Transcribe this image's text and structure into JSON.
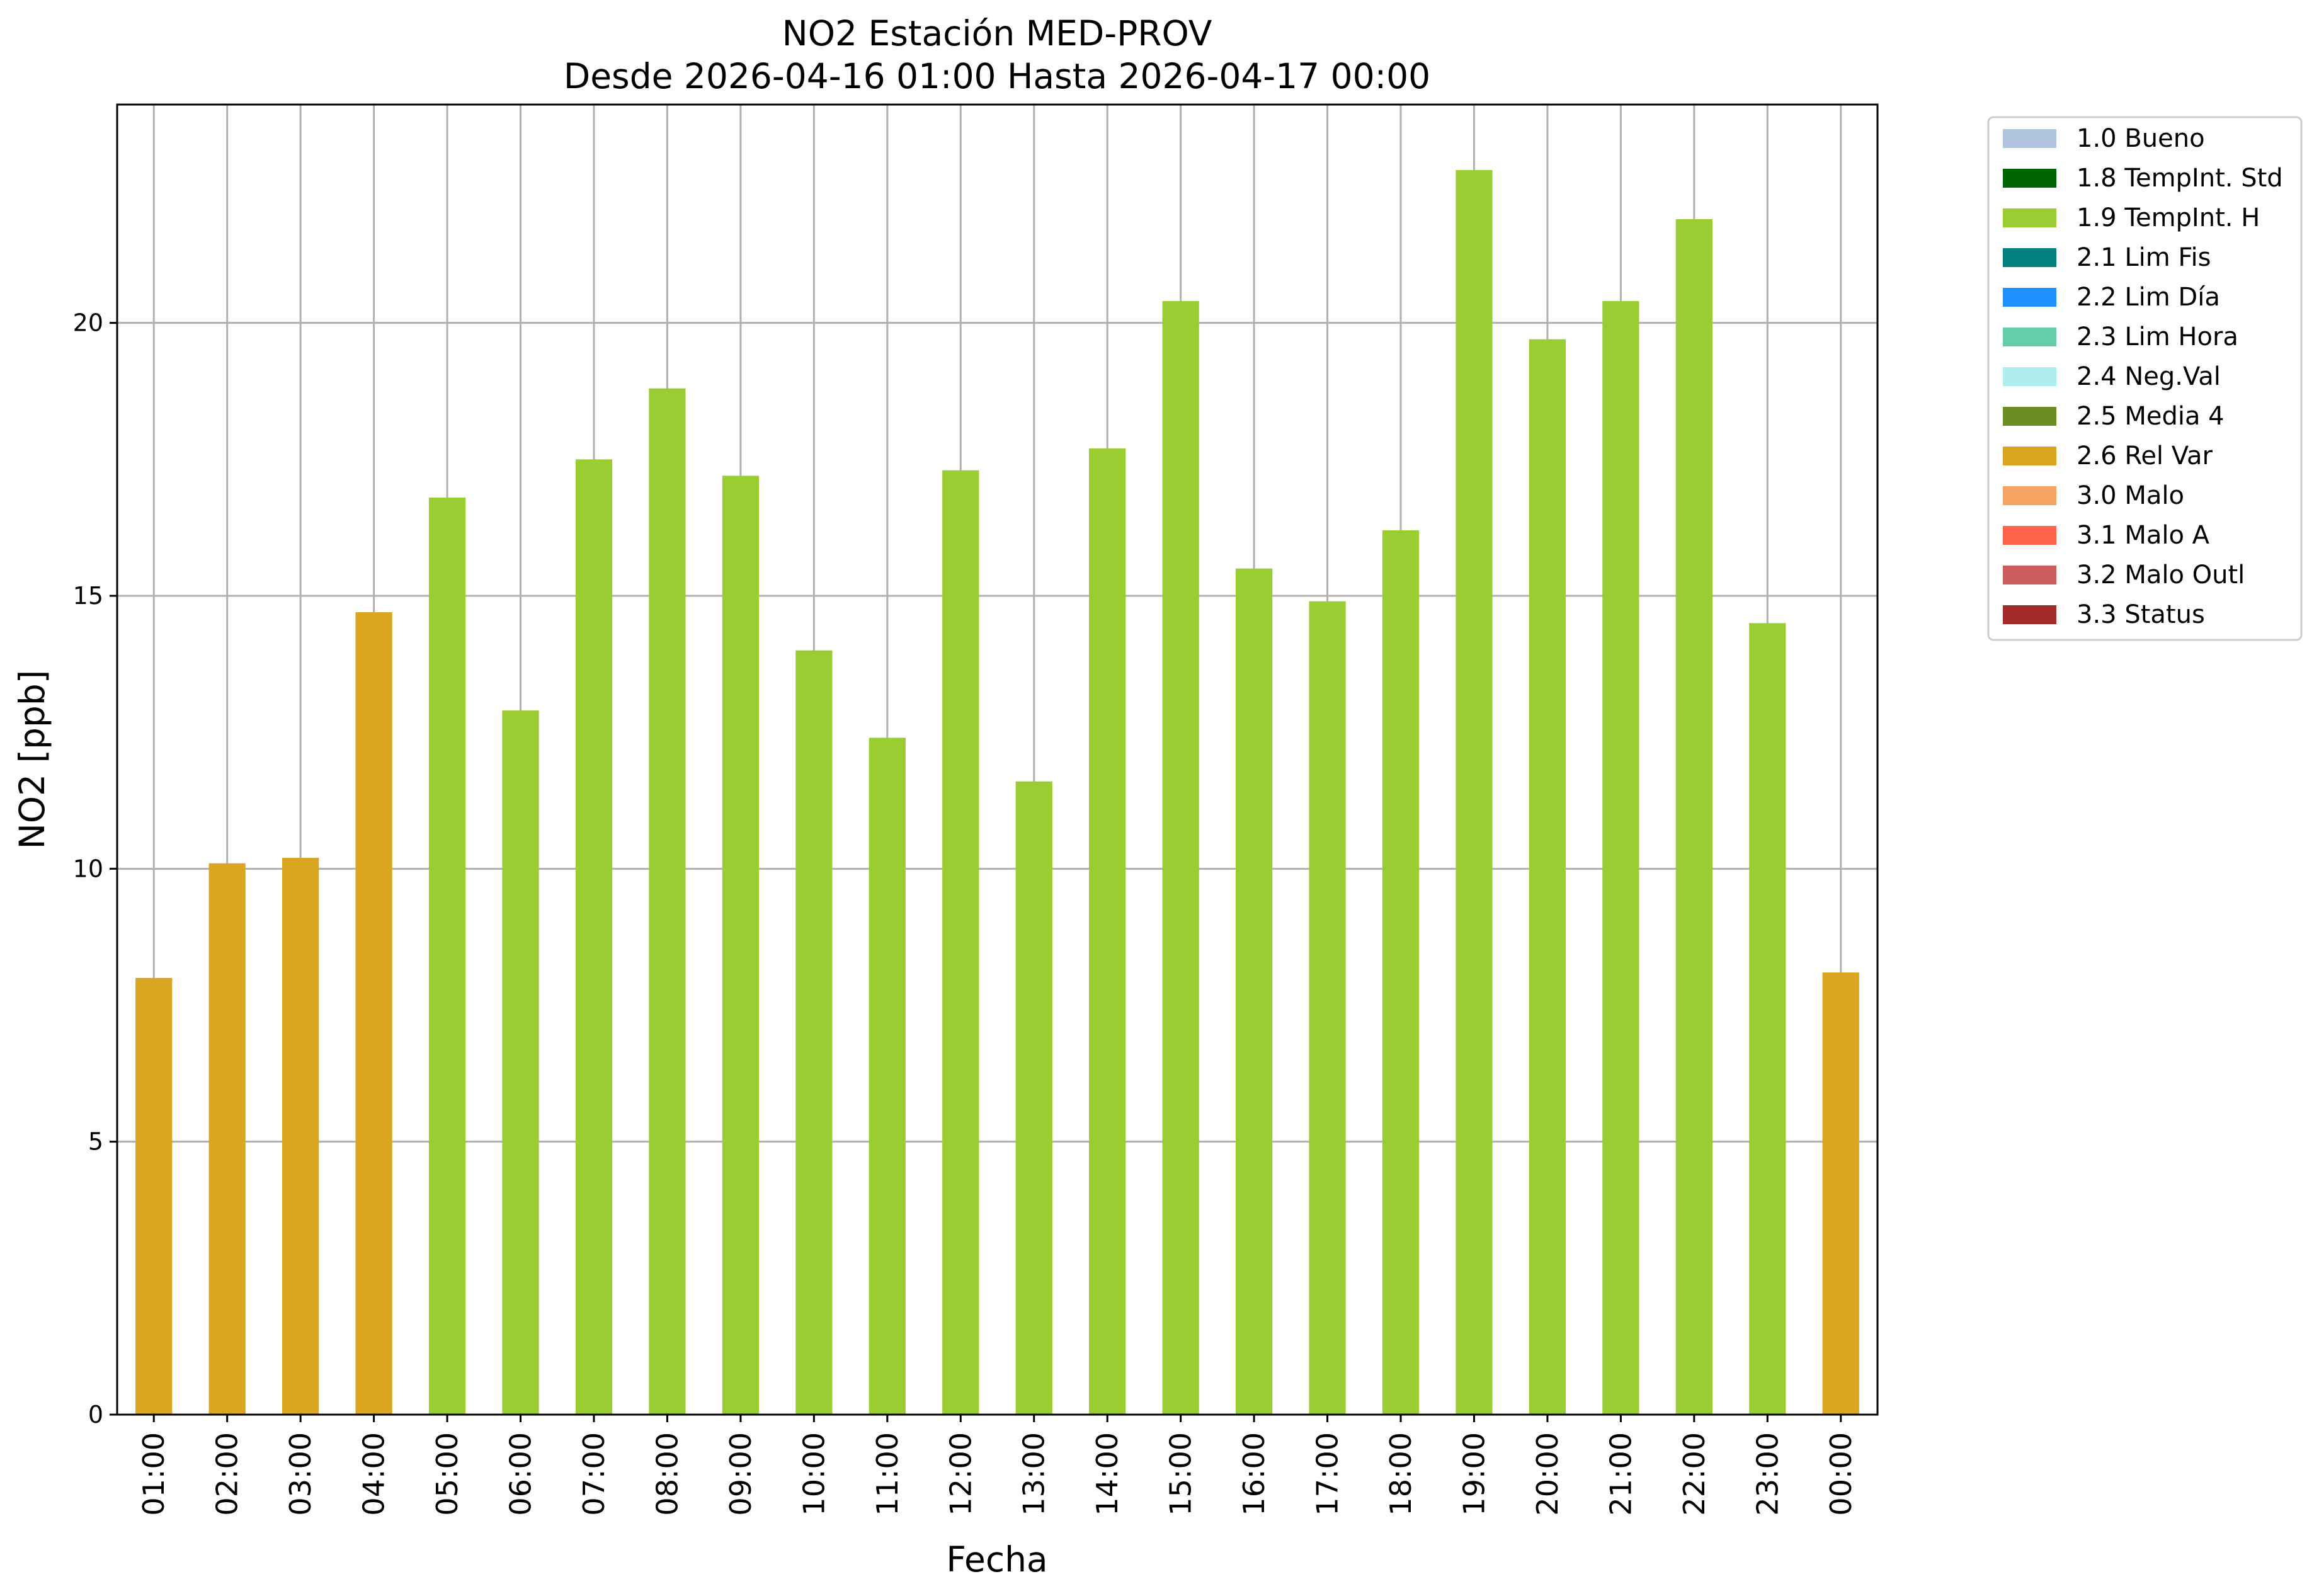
{
  "chart_data": {
    "type": "bar",
    "title": "NO2 Estación MED-PROV",
    "subtitle": "Desde 2026-04-16 01:00 Hasta 2026-04-17 00:00",
    "xlabel": "Fecha",
    "ylabel": "NO2 [ppb]",
    "ylim": [
      0,
      24
    ],
    "yticks": [
      0,
      5,
      10,
      15,
      20
    ],
    "grid": true,
    "legend_position": "outside right, top",
    "categories": [
      "01:00",
      "02:00",
      "03:00",
      "04:00",
      "05:00",
      "06:00",
      "07:00",
      "08:00",
      "09:00",
      "10:00",
      "11:00",
      "12:00",
      "13:00",
      "14:00",
      "15:00",
      "16:00",
      "17:00",
      "18:00",
      "19:00",
      "20:00",
      "21:00",
      "22:00",
      "23:00",
      "00:00"
    ],
    "values": [
      8.0,
      10.1,
      10.2,
      14.7,
      16.8,
      12.9,
      17.5,
      18.8,
      17.2,
      14.0,
      12.4,
      17.3,
      11.6,
      17.7,
      20.4,
      15.5,
      14.9,
      16.2,
      22.8,
      19.7,
      20.4,
      21.9,
      14.5,
      8.1
    ],
    "flags": [
      "2.6 Rel Var",
      "2.6 Rel Var",
      "2.6 Rel Var",
      "2.6 Rel Var",
      "1.9 TempInt. H",
      "1.9 TempInt. H",
      "1.9 TempInt. H",
      "1.9 TempInt. H",
      "1.9 TempInt. H",
      "1.9 TempInt. H",
      "1.9 TempInt. H",
      "1.9 TempInt. H",
      "1.9 TempInt. H",
      "1.9 TempInt. H",
      "1.9 TempInt. H",
      "1.9 TempInt. H",
      "1.9 TempInt. H",
      "1.9 TempInt. H",
      "1.9 TempInt. H",
      "1.9 TempInt. H",
      "1.9 TempInt. H",
      "1.9 TempInt. H",
      "1.9 TempInt. H",
      "2.6 Rel Var"
    ],
    "legend": [
      {
        "label": "1.0 Bueno",
        "color": "#b0c4de"
      },
      {
        "label": "1.8 TempInt. Std",
        "color": "#006400"
      },
      {
        "label": "1.9 TempInt. H",
        "color": "#9acd32"
      },
      {
        "label": "2.1 Lim Fis",
        "color": "#008080"
      },
      {
        "label": "2.2 Lim Día",
        "color": "#1e90ff"
      },
      {
        "label": "2.3 Lim Hora",
        "color": "#66cdaa"
      },
      {
        "label": "2.4 Neg.Val",
        "color": "#afeeee"
      },
      {
        "label": "2.5 Media 4",
        "color": "#6b8e23"
      },
      {
        "label": "2.6 Rel Var",
        "color": "#daa520"
      },
      {
        "label": "3.0 Malo",
        "color": "#f4a460"
      },
      {
        "label": "3.1 Malo A",
        "color": "#ff6347"
      },
      {
        "label": "3.2 Malo Outl",
        "color": "#cd5c5c"
      },
      {
        "label": "3.3 Status",
        "color": "#a52a2a"
      }
    ]
  }
}
